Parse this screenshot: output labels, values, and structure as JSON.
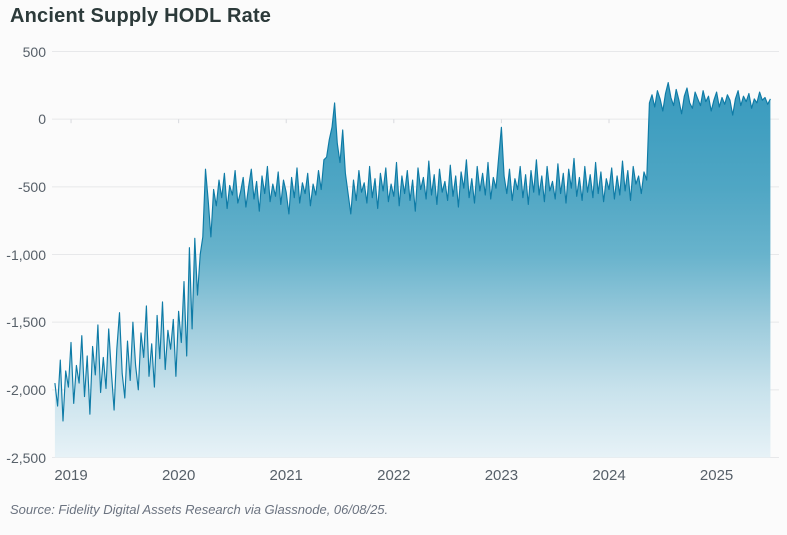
{
  "title": "Ancient Supply HODL Rate",
  "source_note": "Source: Fidelity Digital Assets Research via Glassnode, 06/08/25.",
  "colors": {
    "title_text": "#2c3a3a",
    "axis_text": "#576069",
    "source_text": "#6b7380",
    "line": "#0e7ba6",
    "grid": "#e7e8ea",
    "axis_tick": "#d8dade",
    "background": "#fbfbfb",
    "fill_gradient_stops": [
      "#3697bc",
      "#3f9ec0",
      "#4fa6c4",
      "#68b3cc",
      "#9ccbdc",
      "#c8e2ec",
      "#e7f2f7"
    ]
  },
  "chart_data": {
    "type": "area",
    "title": "Ancient Supply HODL Rate",
    "xlabel": "",
    "ylabel": "",
    "grid": true,
    "legend": false,
    "xlim": [
      2018.823,
      2025.58
    ],
    "ylim": [
      -2500,
      500
    ],
    "ytick_values": [
      500,
      0,
      -500,
      -1000,
      -1500,
      -2000,
      -2500
    ],
    "ytick_labels": [
      "500",
      "0",
      "-500",
      "-1,000",
      "-1,500",
      "-2,000",
      "-2,500"
    ],
    "xtick_values": [
      2019,
      2020,
      2021,
      2022,
      2023,
      2024,
      2025
    ],
    "xtick_labels": [
      "2019",
      "2020",
      "2021",
      "2022",
      "2023",
      "2024",
      "2025"
    ],
    "series": {
      "name": "Ancient Supply HODL Rate",
      "x_start": 2018.85,
      "x_step": 0.025,
      "values": [
        -1950,
        -2120,
        -1780,
        -2230,
        -1860,
        -1980,
        -1650,
        -2100,
        -1820,
        -1950,
        -1600,
        -2050,
        -1750,
        -2180,
        -1680,
        -1890,
        -1520,
        -2020,
        -1760,
        -1990,
        -1550,
        -1870,
        -2150,
        -1700,
        -1430,
        -1880,
        -2060,
        -1640,
        -1930,
        -1500,
        -1820,
        -2000,
        -1580,
        -1760,
        -1380,
        -1900,
        -1660,
        -1980,
        -1450,
        -1770,
        -1350,
        -1850,
        -1560,
        -1700,
        -1480,
        -1900,
        -1420,
        -1650,
        -1200,
        -1750,
        -950,
        -1550,
        -880,
        -1300,
        -1000,
        -870,
        -370,
        -600,
        -870,
        -520,
        -640,
        -450,
        -580,
        -400,
        -660,
        -490,
        -560,
        -380,
        -620,
        -540,
        -430,
        -650,
        -500,
        -370,
        -590,
        -460,
        -680,
        -420,
        -550,
        -350,
        -610,
        -480,
        -570,
        -390,
        -630,
        -450,
        -540,
        -700,
        -430,
        -580,
        -360,
        -620,
        -470,
        -550,
        -400,
        -640,
        -480,
        -560,
        -380,
        -520,
        -300,
        -280,
        -150,
        -60,
        120,
        -180,
        -320,
        -80,
        -400,
        -550,
        -700,
        -450,
        -600,
        -380,
        -540,
        -470,
        -620,
        -350,
        -580,
        -440,
        -660,
        -400,
        -530,
        -360,
        -610,
        -480,
        -570,
        -320,
        -640,
        -420,
        -550,
        -380,
        -600,
        -450,
        -680,
        -360,
        -520,
        -430,
        -590,
        -310,
        -560,
        -410,
        -630,
        -370,
        -540,
        -460,
        -600,
        -340,
        -570,
        -420,
        -650,
        -390,
        -510,
        -300,
        -580,
        -440,
        -620,
        -350,
        -530,
        -400,
        -560,
        -320,
        -590,
        -430,
        -510,
        -280,
        -60,
        -420,
        -550,
        -370,
        -600,
        -440,
        -520,
        -350,
        -580,
        -410,
        -630,
        -380,
        -540,
        -300,
        -560,
        -420,
        -610,
        -350,
        -530,
        -460,
        -590,
        -330,
        -550,
        -400,
        -620,
        -370,
        -510,
        -290,
        -570,
        -430,
        -600,
        -350,
        -540,
        -410,
        -580,
        -320,
        -550,
        -390,
        -610,
        -440,
        -520,
        -360,
        -590,
        -420,
        -560,
        -310,
        -530,
        -380,
        -600,
        -350,
        -480,
        -420,
        -550,
        -390,
        -450,
        120,
        180,
        90,
        210,
        150,
        60,
        190,
        270,
        160,
        100,
        220,
        140,
        40,
        170,
        230,
        120,
        80,
        200,
        150,
        100,
        210,
        130,
        170,
        60,
        140,
        200,
        90,
        160,
        110,
        180,
        140,
        30,
        150,
        210,
        100,
        170,
        130,
        190,
        80,
        150,
        120,
        200,
        140,
        160,
        110,
        150
      ]
    }
  }
}
